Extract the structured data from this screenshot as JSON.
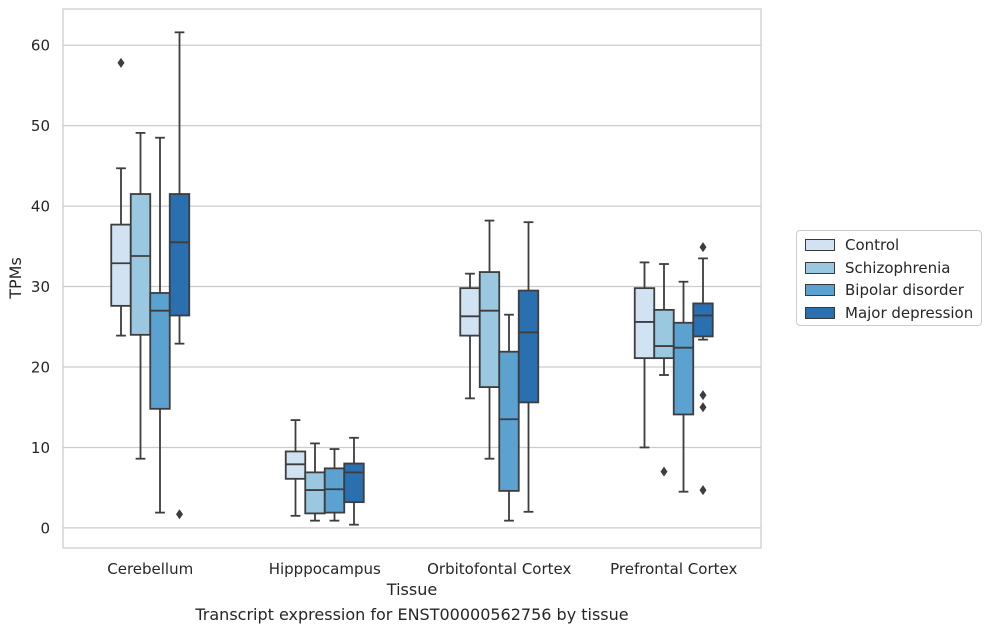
{
  "caption": "Transcript expression for ENST00000562756 by tissue",
  "chart_data": {
    "type": "boxplot",
    "title": "",
    "xlabel": "Tissue",
    "ylabel": "TPMs",
    "ylim": [
      -2.5,
      64.5
    ],
    "yticks": [
      0,
      10,
      20,
      30,
      40,
      50,
      60
    ],
    "grid": "horizontal",
    "legend_position": "right",
    "categories": [
      "Cerebellum",
      "Hipppocampus",
      "Orbitofontal Cortex",
      "Prefrontal Cortex"
    ],
    "series": [
      {
        "name": "Control",
        "color": "#d1e2f2",
        "boxes": [
          {
            "whisker_low": 23.9,
            "q1": 27.6,
            "median": 32.9,
            "q3": 37.7,
            "whisker_high": 44.7,
            "outliers": [
              57.8
            ]
          },
          {
            "whisker_low": 1.5,
            "q1": 6.1,
            "median": 7.9,
            "q3": 9.5,
            "whisker_high": 13.4,
            "outliers": []
          },
          {
            "whisker_low": 16.1,
            "q1": 23.9,
            "median": 26.3,
            "q3": 29.8,
            "whisker_high": 31.6,
            "outliers": []
          },
          {
            "whisker_low": 10.0,
            "q1": 21.1,
            "median": 25.6,
            "q3": 29.8,
            "whisker_high": 33.0,
            "outliers": []
          }
        ]
      },
      {
        "name": "Schizophrenia",
        "color": "#9ac8e0",
        "boxes": [
          {
            "whisker_low": 8.6,
            "q1": 24.0,
            "median": 33.8,
            "q3": 41.5,
            "whisker_high": 49.1,
            "outliers": []
          },
          {
            "whisker_low": 0.9,
            "q1": 1.8,
            "median": 4.7,
            "q3": 6.9,
            "whisker_high": 10.5,
            "outliers": []
          },
          {
            "whisker_low": 8.6,
            "q1": 17.5,
            "median": 27.0,
            "q3": 31.8,
            "whisker_high": 38.2,
            "outliers": []
          },
          {
            "whisker_low": 19.0,
            "q1": 21.1,
            "median": 22.6,
            "q3": 27.1,
            "whisker_high": 32.8,
            "outliers": [
              7.0
            ]
          }
        ]
      },
      {
        "name": "Bipolar disorder",
        "color": "#5ba2d0",
        "boxes": [
          {
            "whisker_low": 1.9,
            "q1": 14.8,
            "median": 27.0,
            "q3": 29.2,
            "whisker_high": 48.5,
            "outliers": []
          },
          {
            "whisker_low": 0.9,
            "q1": 1.9,
            "median": 4.8,
            "q3": 7.4,
            "whisker_high": 9.8,
            "outliers": []
          },
          {
            "whisker_low": 0.9,
            "q1": 4.6,
            "median": 13.5,
            "q3": 21.9,
            "whisker_high": 26.5,
            "outliers": []
          },
          {
            "whisker_low": 4.5,
            "q1": 14.1,
            "median": 22.4,
            "q3": 25.5,
            "whisker_high": 30.6,
            "outliers": []
          }
        ]
      },
      {
        "name": "Major depression",
        "color": "#2a6fb0",
        "boxes": [
          {
            "whisker_low": 22.9,
            "q1": 26.4,
            "median": 35.5,
            "q3": 41.5,
            "whisker_high": 61.6,
            "outliers": [
              1.7
            ]
          },
          {
            "whisker_low": 0.4,
            "q1": 3.2,
            "median": 6.9,
            "q3": 8.0,
            "whisker_high": 11.2,
            "outliers": []
          },
          {
            "whisker_low": 2.0,
            "q1": 15.6,
            "median": 24.3,
            "q3": 29.5,
            "whisker_high": 38.0,
            "outliers": []
          },
          {
            "whisker_low": 23.4,
            "q1": 23.8,
            "median": 26.4,
            "q3": 27.9,
            "whisker_high": 33.5,
            "outliers": [
              34.9,
              16.5,
              15.0,
              4.7
            ]
          }
        ]
      }
    ]
  }
}
